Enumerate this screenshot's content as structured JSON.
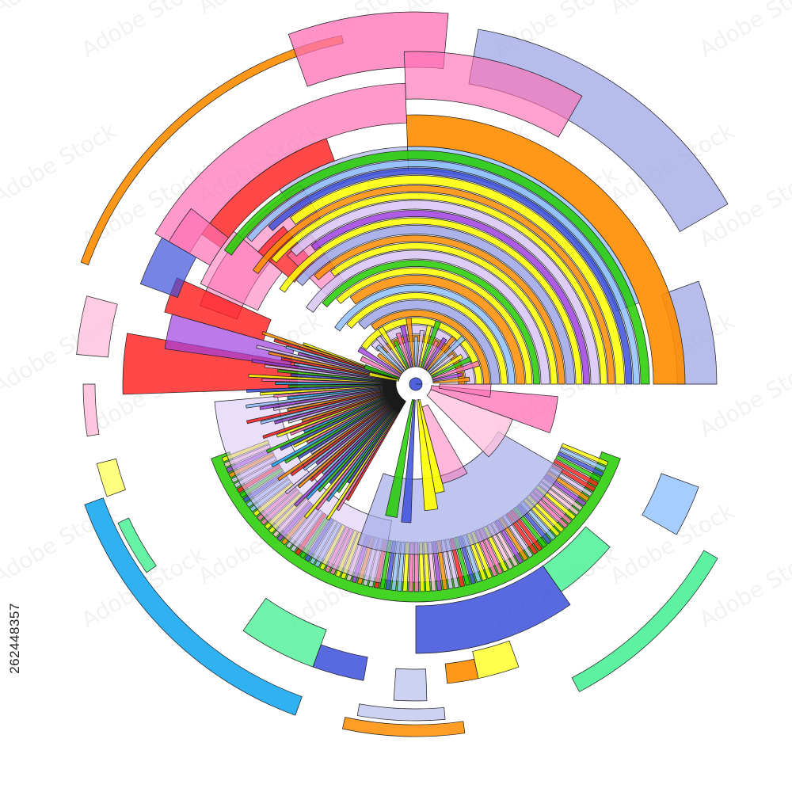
{
  "image": {
    "subject": "abstract-radial-sunburst-infographic",
    "stock_id": "262448357",
    "watermark_text": "Adobe Stock",
    "palette": {
      "pink": "#ff6fb5",
      "light_pink": "#ffc0dc",
      "orange": "#ff8c00",
      "yellow": "#ffff00",
      "green": "#22cc00",
      "blue": "#3c50dc",
      "light_blue": "#8fc0ff",
      "periwinkle": "#9ea6e6",
      "lavender": "#d8c4f5",
      "purple": "#a040e0",
      "red": "#ff1a1a",
      "mint": "#40f090",
      "sky": "#1aa8f0"
    }
  }
}
